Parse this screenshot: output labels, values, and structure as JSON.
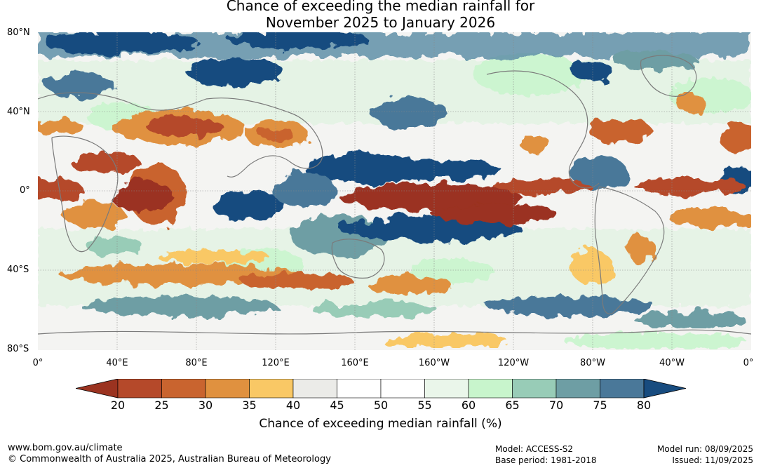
{
  "title": {
    "line1": "Chance of exceeding the median rainfall for",
    "line2": "November 2025 to January 2026"
  },
  "map": {
    "lat_labels": [
      "80°N",
      "40°N",
      "0°",
      "40°S",
      "80°S"
    ],
    "lon_labels": [
      "0°",
      "40°E",
      "80°E",
      "120°E",
      "160°E",
      "160°W",
      "120°W",
      "80°W",
      "40°W",
      "0°"
    ]
  },
  "legend": {
    "title": "Chance of exceeding median rainfall (%)",
    "ticks": [
      "20",
      "25",
      "30",
      "35",
      "40",
      "45",
      "50",
      "55",
      "60",
      "65",
      "70",
      "75",
      "80"
    ],
    "colors": [
      "#9b3320",
      "#b5492a",
      "#c9642f",
      "#e0913f",
      "#f9c865",
      "#ebebe8",
      "#ffffff",
      "#ffffff",
      "#eaf6ea",
      "#c8f5cc",
      "#98ccb7",
      "#6e9ea4",
      "#4a7899",
      "#184c7f"
    ]
  },
  "footer": {
    "url": "www.bom.gov.au/climate",
    "copyright": "© Commonwealth of Australia 2025, Australian Bureau of Meteorology",
    "model": "Model: ACCESS-S2",
    "base_period": "Base period: 1981-2018",
    "model_run": "Model run: 08/09/2025",
    "issued": "Issued: 11/09/2025"
  }
}
